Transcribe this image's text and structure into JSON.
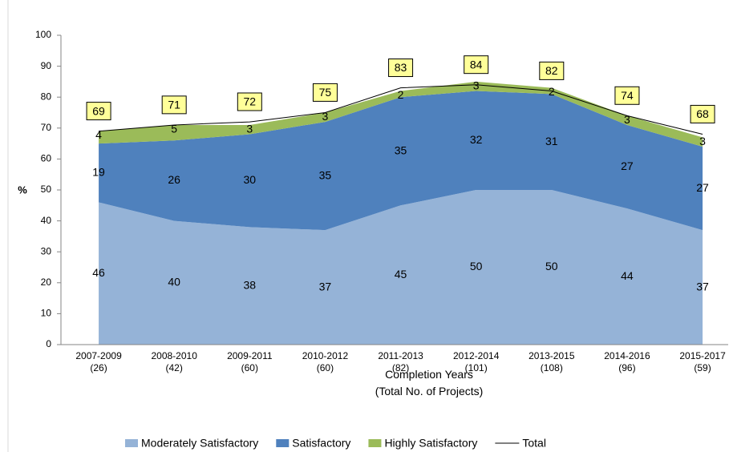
{
  "chart_data": {
    "type": "area",
    "categories": [
      "2007-2009\n(26)",
      "2008-2010\n(42)",
      "2009-2011\n(60)",
      "2010-2012\n(60)",
      "2011-2013\n(82)",
      "2012-2014\n(101)",
      "2013-2015\n(108)",
      "2014-2016\n(96)",
      "2015-2017\n(59)"
    ],
    "series": [
      {
        "name": "Moderately Satisfactory",
        "color": "#95b3d7",
        "values": [
          46,
          40,
          38,
          37,
          45,
          50,
          50,
          44,
          37
        ]
      },
      {
        "name": "Satisfactory",
        "color": "#4f81bd",
        "values": [
          19,
          26,
          30,
          35,
          35,
          32,
          31,
          27,
          27
        ]
      },
      {
        "name": "Highly Satisfactory",
        "color": "#9bbb59",
        "values": [
          4,
          5,
          3,
          3,
          2,
          3,
          2,
          3,
          3
        ]
      },
      {
        "name": "Total",
        "color": "#000000",
        "type": "line",
        "values": [
          69,
          71,
          72,
          75,
          83,
          84,
          82,
          74,
          68
        ]
      }
    ],
    "ylabel": "%",
    "xlabel": "Completion Years\n(Total No. of Projects)",
    "ylim": [
      0,
      100
    ],
    "yticks": [
      0,
      10,
      20,
      30,
      40,
      50,
      60,
      70,
      80,
      90,
      100
    ],
    "grid": false,
    "legend": "bottom"
  }
}
